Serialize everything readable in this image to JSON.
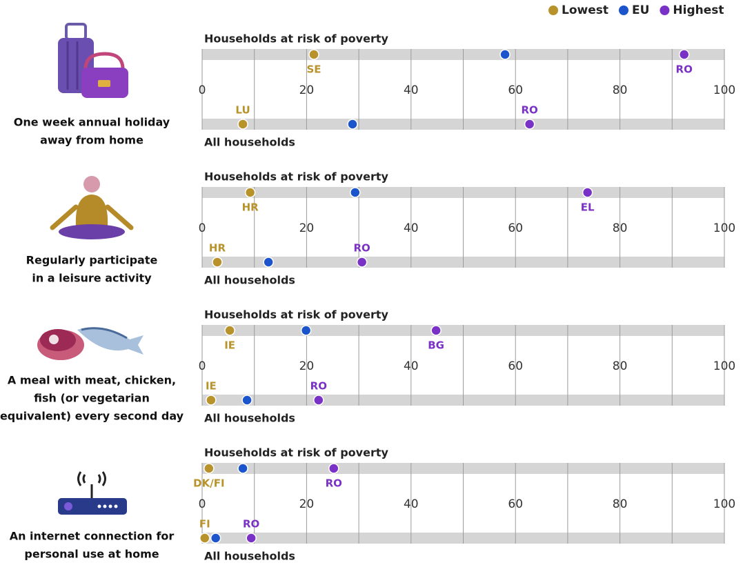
{
  "legend": {
    "position": "top-right",
    "items": [
      {
        "name": "Lowest",
        "color": "#b8922a"
      },
      {
        "name": "EU",
        "color": "#1c54cc"
      },
      {
        "name": "Highest",
        "color": "#7a32c6"
      }
    ]
  },
  "chart_data": [
    {
      "type": "dot",
      "title": [
        "One week annual holiday",
        "away from home"
      ],
      "xlim": [
        0,
        100
      ],
      "xticks": [
        0,
        20,
        40,
        60,
        80,
        100
      ],
      "xgrid": [
        0,
        10,
        20,
        30,
        40,
        50,
        60,
        70,
        80,
        90,
        100
      ],
      "rows": [
        {
          "label": "Households at risk of poverty",
          "points": [
            {
              "label": "SE",
              "value": 21.4
            },
            {
              "value": 58.0
            },
            {
              "label": "RO",
              "value": 92.3
            }
          ]
        },
        {
          "label": "All households",
          "points": [
            {
              "label": "LU",
              "value": 7.8
            },
            {
              "value": 28.8
            },
            {
              "label": "RO",
              "value": 62.7
            }
          ]
        }
      ]
    },
    {
      "type": "dot",
      "title": [
        "Regularly participate",
        "in a leisure activity"
      ],
      "xlim": [
        0,
        100
      ],
      "xticks": [
        0,
        20,
        40,
        60,
        80,
        100
      ],
      "xgrid": [
        0,
        10,
        20,
        30,
        40,
        50,
        60,
        70,
        80,
        90,
        100
      ],
      "rows": [
        {
          "label": "Households at risk of poverty",
          "points": [
            {
              "label": "HR",
              "value": 9.2
            },
            {
              "value": 29.3
            },
            {
              "label": "EL",
              "value": 73.8
            }
          ]
        },
        {
          "label": "All households",
          "points": [
            {
              "label": "HR",
              "value": 2.9
            },
            {
              "value": 12.7
            },
            {
              "label": "RO",
              "value": 30.6
            }
          ]
        }
      ]
    },
    {
      "type": "dot",
      "title": [
        "A meal with meat, chicken,",
        "fish (or vegetarian",
        "equivalent) every second day"
      ],
      "xlim": [
        0,
        100
      ],
      "xticks": [
        0,
        20,
        40,
        60,
        80,
        100
      ],
      "xgrid": [
        0,
        10,
        20,
        30,
        40,
        50,
        60,
        70,
        80,
        90,
        100
      ],
      "rows": [
        {
          "label": "Households at risk of poverty",
          "points": [
            {
              "label": "IE",
              "value": 5.3
            },
            {
              "value": 19.9
            },
            {
              "label": "BG",
              "value": 44.8
            }
          ]
        },
        {
          "label": "All households",
          "points": [
            {
              "label": "IE",
              "value": 1.7
            },
            {
              "value": 8.6
            },
            {
              "label": "RO",
              "value": 22.3
            }
          ]
        }
      ]
    },
    {
      "type": "dot",
      "title": [
        "An internet connection for",
        "personal use at home"
      ],
      "xlim": [
        0,
        100
      ],
      "xticks": [
        0,
        20,
        40,
        60,
        80,
        100
      ],
      "xgrid": [
        0,
        10,
        20,
        30,
        40,
        50,
        60,
        70,
        80,
        90,
        100
      ],
      "rows": [
        {
          "label": "Households at risk of poverty",
          "points": [
            {
              "label": "DK/FI",
              "value": 1.3
            },
            {
              "value": 7.8
            },
            {
              "label": "RO",
              "value": 25.2
            }
          ]
        },
        {
          "label": "All households",
          "points": [
            {
              "label": "FI",
              "value": 0.5
            },
            {
              "value": 2.6
            },
            {
              "label": "RO",
              "value": 9.4
            }
          ]
        }
      ]
    }
  ]
}
